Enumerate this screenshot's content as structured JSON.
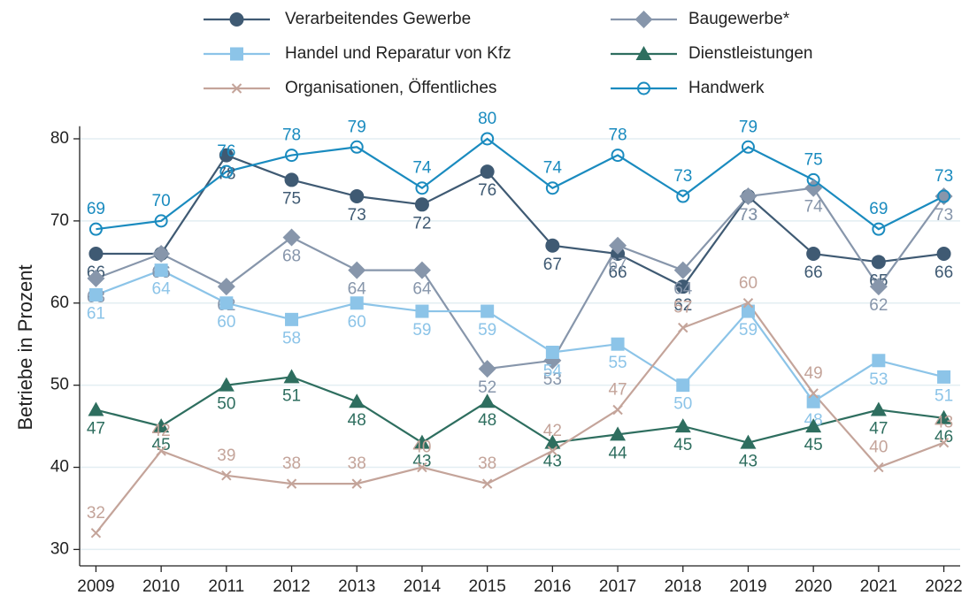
{
  "chart_data": {
    "type": "line",
    "y_label": "Betriebe in Prozent",
    "x": [
      2009,
      2010,
      2011,
      2012,
      2013,
      2014,
      2015,
      2016,
      2017,
      2018,
      2019,
      2020,
      2021,
      2022
    ],
    "xlim": [
      2008.75,
      2022.25
    ],
    "xticks": [
      2009,
      2010,
      2011,
      2012,
      2013,
      2014,
      2015,
      2016,
      2017,
      2018,
      2019,
      2020,
      2021,
      2022
    ],
    "ylim": [
      28,
      81
    ],
    "yticks": [
      30,
      40,
      50,
      60,
      70,
      80
    ],
    "grid": true,
    "series": [
      {
        "name": "Verarbeitendes Gewerbe",
        "color": "#3f5a73",
        "marker": "circle",
        "values": [
          66,
          66,
          78,
          75,
          73,
          72,
          76,
          67,
          66,
          62,
          73,
          66,
          65,
          66
        ]
      },
      {
        "name": "Baugewerbe*",
        "color": "#8796ab",
        "marker": "diamond",
        "values": [
          63,
          66,
          62,
          68,
          64,
          64,
          52,
          53,
          67,
          64,
          73,
          74,
          62,
          73
        ]
      },
      {
        "name": "Handel und Reparatur von Kfz",
        "color": "#8cc4e8",
        "marker": "square",
        "values": [
          61,
          64,
          60,
          58,
          60,
          59,
          59,
          54,
          55,
          50,
          59,
          48,
          53,
          51
        ]
      },
      {
        "name": "Dienstleistungen",
        "color": "#2e6e5f",
        "marker": "triangle",
        "values": [
          47,
          45,
          50,
          51,
          48,
          43,
          48,
          43,
          44,
          45,
          43,
          45,
          47,
          46
        ]
      },
      {
        "name": "Organisationen, Öffentliches",
        "color": "#c4a49a",
        "marker": "x",
        "values": [
          32,
          42,
          39,
          38,
          38,
          40,
          38,
          42,
          47,
          57,
          60,
          49,
          40,
          43
        ]
      },
      {
        "name": "Handwerk",
        "color": "#1a8bbf",
        "marker": "open-circle",
        "values": [
          69,
          70,
          76,
          78,
          79,
          74,
          80,
          74,
          78,
          73,
          79,
          75,
          69,
          73
        ]
      }
    ]
  }
}
